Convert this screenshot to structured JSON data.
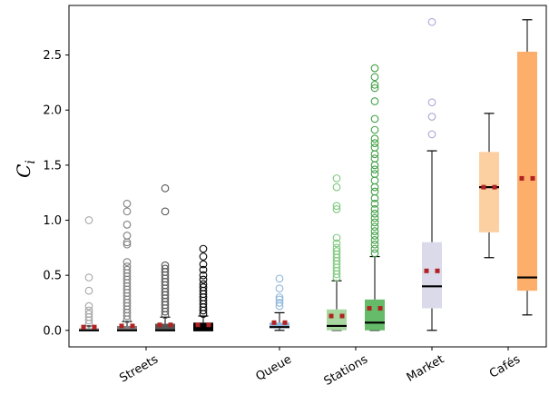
{
  "chart_data": {
    "type": "box",
    "ylabel": "C",
    "ylabel_subscript": "i",
    "ylim": [
      -0.15,
      2.95
    ],
    "yticks": [
      {
        "value": 0.0,
        "label": "0.0"
      },
      {
        "value": 0.5,
        "label": "0.5"
      },
      {
        "value": 1.0,
        "label": "1.0"
      },
      {
        "value": 1.5,
        "label": "1.5"
      },
      {
        "value": 2.0,
        "label": "2.0"
      },
      {
        "value": 2.5,
        "label": "2.5"
      }
    ],
    "groups": [
      {
        "label": "Streets",
        "center": 2.5
      },
      {
        "label": "Queue",
        "center": 6.0
      },
      {
        "label": "Stations",
        "center": 8.0
      },
      {
        "label": "Market",
        "center": 10.0
      },
      {
        "label": "Cafés",
        "center": 12.0
      }
    ],
    "mean_marker_color": "#b22222",
    "median_color": "#000000",
    "boxes": [
      {
        "group": "Streets",
        "x": 1,
        "color": "#a6a6a6",
        "outlier_color": "#a6a6a6",
        "q1": 0.0,
        "median": 0.0,
        "q3": 0.02,
        "whisker_low": 0.0,
        "whisker_high": 0.04,
        "mean": 0.03,
        "outliers": [
          0.06,
          0.09,
          0.12,
          0.15,
          0.18,
          0.22,
          0.36,
          0.48,
          1.0
        ]
      },
      {
        "group": "Streets",
        "x": 2,
        "color": "#7f7f7f",
        "outlier_color": "#7f7f7f",
        "q1": 0.0,
        "median": 0.0,
        "q3": 0.04,
        "whisker_low": 0.0,
        "whisker_high": 0.08,
        "mean": 0.04,
        "outliers": [
          0.1,
          0.13,
          0.16,
          0.19,
          0.22,
          0.25,
          0.28,
          0.31,
          0.34,
          0.37,
          0.4,
          0.43,
          0.46,
          0.49,
          0.52,
          0.55,
          0.58,
          0.62,
          0.78,
          0.8,
          0.86,
          0.96,
          1.08,
          1.15
        ]
      },
      {
        "group": "Streets",
        "x": 3,
        "color": "#555555",
        "outlier_color": "#555555",
        "q1": 0.0,
        "median": 0.0,
        "q3": 0.06,
        "whisker_low": 0.0,
        "whisker_high": 0.12,
        "mean": 0.05,
        "outliers": [
          0.14,
          0.17,
          0.2,
          0.23,
          0.26,
          0.29,
          0.32,
          0.35,
          0.38,
          0.41,
          0.44,
          0.47,
          0.5,
          0.53,
          0.56,
          0.59,
          1.08,
          1.29
        ]
      },
      {
        "group": "Streets",
        "x": 4,
        "color": "#000000",
        "outlier_color": "#000000",
        "q1": 0.0,
        "median": 0.0,
        "q3": 0.07,
        "whisker_low": 0.0,
        "whisker_high": 0.13,
        "mean": 0.05,
        "outliers": [
          0.15,
          0.18,
          0.21,
          0.24,
          0.27,
          0.3,
          0.33,
          0.36,
          0.39,
          0.42,
          0.46,
          0.5,
          0.55,
          0.6,
          0.67,
          0.74
        ]
      },
      {
        "group": "Queue",
        "x": 6,
        "color": "#8fb7dc",
        "outlier_color": "#8fb7dc",
        "q1": 0.02,
        "median": 0.03,
        "q3": 0.07,
        "whisker_low": 0.0,
        "whisker_high": 0.16,
        "mean": 0.07,
        "outliers": [
          0.22,
          0.25,
          0.28,
          0.3,
          0.38,
          0.47
        ]
      },
      {
        "group": "Stations",
        "x": 7.5,
        "color": "#a8d8a0",
        "outlier_color": "#7fc97f",
        "q1": 0.0,
        "median": 0.04,
        "q3": 0.19,
        "whisker_low": 0.0,
        "whisker_high": 0.45,
        "mean": 0.13,
        "outliers": [
          0.48,
          0.51,
          0.54,
          0.57,
          0.6,
          0.63,
          0.66,
          0.69,
          0.72,
          0.75,
          0.79,
          0.84,
          1.1,
          1.13,
          1.3,
          1.38
        ]
      },
      {
        "group": "Stations",
        "x": 8.5,
        "color": "#66bb6a",
        "outlier_color": "#43a047",
        "q1": 0.0,
        "median": 0.07,
        "q3": 0.28,
        "whisker_low": 0.0,
        "whisker_high": 0.67,
        "mean": 0.2,
        "outliers": [
          0.7,
          0.74,
          0.78,
          0.82,
          0.86,
          0.9,
          0.94,
          0.98,
          1.02,
          1.06,
          1.1,
          1.15,
          1.2,
          1.26,
          1.3,
          1.36,
          1.42,
          1.46,
          1.5,
          1.56,
          1.6,
          1.66,
          1.7,
          1.74,
          1.82,
          1.92,
          2.08,
          2.2,
          2.23,
          2.3,
          2.38
        ]
      },
      {
        "group": "Market",
        "x": 10,
        "color": "#dadaeb",
        "outlier_color": "#a9a9d6",
        "q1": 0.2,
        "median": 0.4,
        "q3": 0.8,
        "whisker_low": 0.0,
        "whisker_high": 1.63,
        "mean": 0.54,
        "outliers": [
          1.78,
          1.94,
          2.07,
          2.8
        ]
      },
      {
        "group": "Cafés",
        "x": 11.5,
        "color": "#fdd0a2",
        "outlier_color": "#fdd0a2",
        "q1": 0.89,
        "median": 1.3,
        "q3": 1.62,
        "whisker_low": 0.66,
        "whisker_high": 1.97,
        "mean": 1.3,
        "outliers": []
      },
      {
        "group": "Cafés",
        "x": 12.5,
        "color": "#fdae6b",
        "outlier_color": "#fdae6b",
        "q1": 0.36,
        "median": 0.48,
        "q3": 2.53,
        "whisker_low": 0.14,
        "whisker_high": 2.82,
        "mean": 1.38,
        "outliers": []
      }
    ]
  }
}
